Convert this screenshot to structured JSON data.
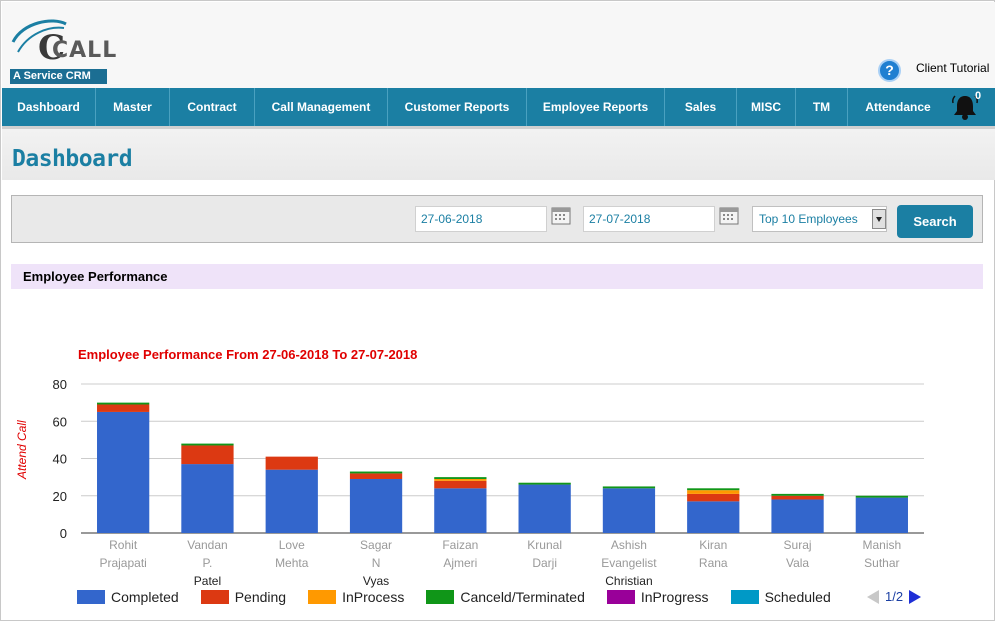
{
  "header": {
    "logo_text": "CALL",
    "logo_tagline": "A Service CRM",
    "client_tutorial": "Client Tutorial",
    "help_symbol": "?"
  },
  "nav": {
    "items": [
      {
        "label": "Dashboard"
      },
      {
        "label": "Master"
      },
      {
        "label": "Contract"
      },
      {
        "label": "Call Management"
      },
      {
        "label": "Customer Reports"
      },
      {
        "label": "Employee Reports"
      },
      {
        "label": "Sales"
      },
      {
        "label": "MISC"
      },
      {
        "label": "TM"
      },
      {
        "label": "Attendance"
      }
    ],
    "notification_count": "0"
  },
  "page_title": "Dashboard",
  "filters": {
    "from_date": "27-06-2018",
    "to_date": "27-07-2018",
    "top_select": "Top 10 Employees",
    "search_label": "Search"
  },
  "panel": {
    "title": "Employee Performance"
  },
  "pager": {
    "text": "1/2"
  },
  "colors": {
    "brand": "#1b7fa3",
    "completed": "#3366cc",
    "pending": "#dc3912",
    "inprocess": "#ff9900",
    "canceled": "#109618",
    "inprogress": "#990099",
    "scheduled": "#0099c6"
  },
  "chart_data": {
    "type": "bar",
    "stacked": true,
    "title": "Employee Performance From 27-06-2018 To 27-07-2018",
    "xlabel": "",
    "ylabel": "Attend Call",
    "ylim": [
      0,
      80
    ],
    "yticks": [
      0,
      20,
      40,
      60,
      80
    ],
    "categories": [
      "Rohit Prajapati",
      "Vandan P. Patel",
      "Love Mehta",
      "Sagar N Vyas",
      "Faizan Ajmeri",
      "Krunal Darji",
      "Ashish Evangelist Christian",
      "Kiran Rana",
      "Suraj Vala",
      "Manish Suthar"
    ],
    "series": [
      {
        "name": "Completed",
        "values": [
          65,
          37,
          34,
          29,
          24,
          26,
          24,
          17,
          18,
          19
        ]
      },
      {
        "name": "Pending",
        "values": [
          4,
          10,
          7,
          3,
          4,
          0,
          0,
          4,
          2,
          0
        ]
      },
      {
        "name": "InProcess",
        "values": [
          0,
          0,
          0,
          0,
          1,
          0,
          0,
          2,
          0,
          0
        ]
      },
      {
        "name": "Canceld/Terminated",
        "values": [
          1,
          1,
          0,
          1,
          1,
          1,
          1,
          1,
          1,
          1
        ]
      },
      {
        "name": "InProgress",
        "values": [
          0,
          0,
          0,
          0,
          0,
          0,
          0,
          0,
          0,
          0
        ]
      },
      {
        "name": "Scheduled",
        "values": [
          0,
          0,
          0,
          0,
          0,
          0,
          0,
          0,
          0,
          0
        ]
      }
    ],
    "grid": true,
    "legend": "bottom"
  }
}
